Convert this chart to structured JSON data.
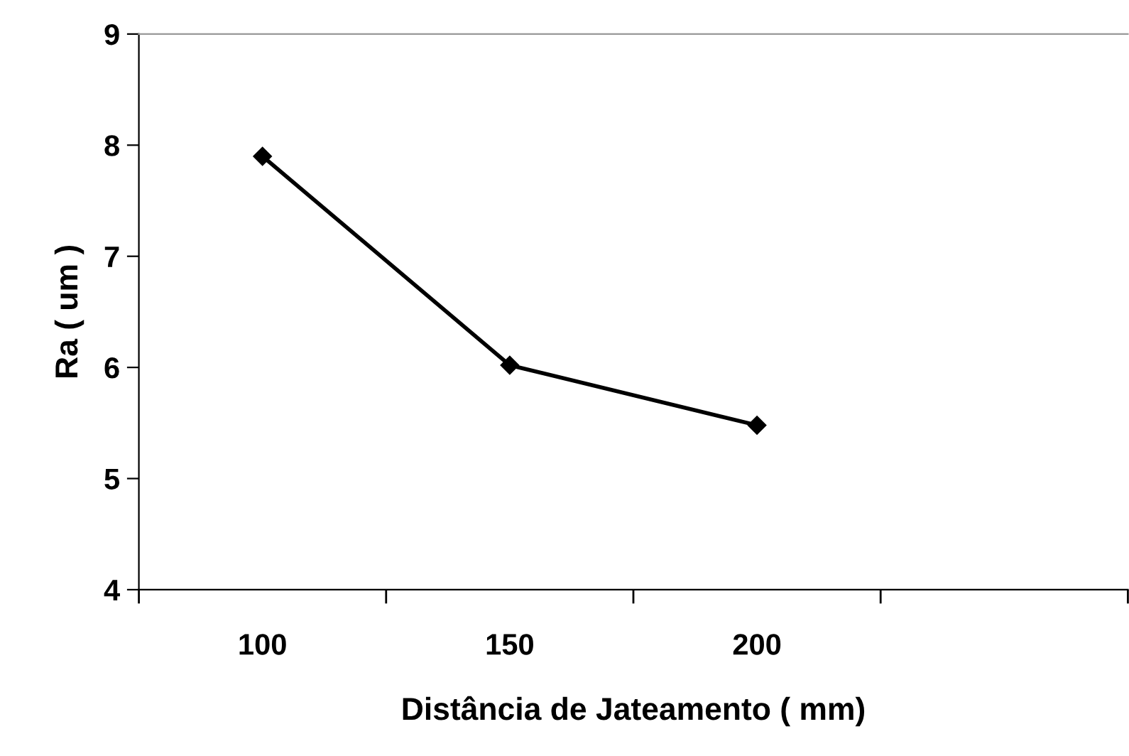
{
  "chart_data": {
    "type": "line",
    "xlabel": "Distância de Jateamento ( mm)",
    "ylabel": "Ra ( um )",
    "categories": [
      "100",
      "150",
      "200",
      null
    ],
    "series": [
      {
        "color": "#000000",
        "values": [
          7.9,
          6.02,
          5.48,
          null
        ]
      }
    ],
    "ylim": [
      4,
      9
    ],
    "yticks": [
      4,
      5,
      6,
      7,
      8,
      9
    ],
    "grid": false,
    "legend": false,
    "marker": "diamond",
    "line_style": "solid"
  }
}
